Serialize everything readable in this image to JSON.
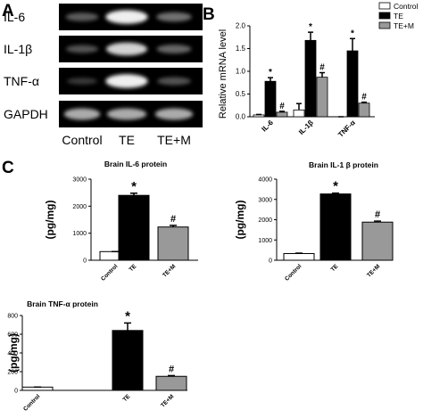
{
  "panel_labels": {
    "a": "A",
    "b": "B",
    "c": "C"
  },
  "gel": {
    "rows": [
      "IL-6",
      "IL-1β",
      "TNF-α",
      "GAPDH"
    ],
    "lanes": [
      "Control",
      "TE",
      "TE+M"
    ],
    "intensity": [
      [
        0.35,
        0.95,
        0.45
      ],
      [
        0.3,
        0.85,
        0.4
      ],
      [
        0.15,
        0.95,
        0.3
      ],
      [
        0.7,
        0.7,
        0.7
      ]
    ]
  },
  "chart_data": [
    {
      "type": "bar",
      "panel": "B",
      "ylabel": "Relative mRNA level",
      "categories": [
        "IL-6",
        "IL-1β",
        "TNF-α"
      ],
      "ylim": [
        0,
        2.0
      ],
      "yticks": [
        "0.0",
        "0.5",
        "1.0",
        "1.5",
        "2.0"
      ],
      "legend_position": "top-right",
      "series": [
        {
          "name": "Control",
          "color": "#ffffff",
          "values": [
            0.04,
            0.15,
            0.0
          ],
          "errors": [
            0.01,
            0.14,
            0.0
          ],
          "marks": [
            "",
            "",
            ""
          ]
        },
        {
          "name": "TE",
          "color": "#000000",
          "values": [
            0.78,
            1.68,
            1.45
          ],
          "errors": [
            0.08,
            0.18,
            0.27
          ],
          "marks": [
            "*",
            "*",
            "*"
          ]
        },
        {
          "name": "TE+M",
          "color": "#999999",
          "values": [
            0.1,
            0.87,
            0.3
          ],
          "errors": [
            0.02,
            0.1,
            0.02
          ],
          "marks": [
            "#",
            "#",
            "#"
          ]
        }
      ]
    },
    {
      "type": "bar",
      "panel": "C",
      "title": "Brain IL-6 protein",
      "ylabel": "(pg/mg)",
      "categories": [
        "Control",
        "TE",
        "TE+M"
      ],
      "ylim": [
        0,
        3000
      ],
      "yticks": [
        "0",
        "1000",
        "2000",
        "3000"
      ],
      "values": [
        320,
        2400,
        1230
      ],
      "errors": [
        0,
        80,
        60
      ],
      "colors": [
        "#ffffff",
        "#000000",
        "#999999"
      ],
      "marks": [
        "",
        "*",
        "#"
      ]
    },
    {
      "type": "bar",
      "panel": "C",
      "title": "Brain IL-1 β protein",
      "ylabel": "(pg/mg)",
      "categories": [
        "Control",
        "TE",
        "TE+M"
      ],
      "ylim": [
        0,
        4000
      ],
      "yticks": [
        "0",
        "1000",
        "2000",
        "3000",
        "4000"
      ],
      "values": [
        330,
        3270,
        1880
      ],
      "errors": [
        20,
        40,
        50
      ],
      "colors": [
        "#ffffff",
        "#000000",
        "#999999"
      ],
      "marks": [
        "",
        "*",
        "#"
      ]
    },
    {
      "type": "bar",
      "panel": "C",
      "title": "Brain TNF-α protein",
      "ylabel": "(pg/mg)",
      "categories": [
        "Control",
        "TE",
        "TE+M"
      ],
      "ylim": [
        0,
        800
      ],
      "yticks": [
        "0",
        "200",
        "400",
        "600",
        "800"
      ],
      "values": [
        35,
        640,
        150
      ],
      "errors": [
        0,
        80,
        8
      ],
      "colors": [
        "#ffffff",
        "#000000",
        "#999999"
      ],
      "marks": [
        "",
        "*",
        "#"
      ]
    }
  ]
}
